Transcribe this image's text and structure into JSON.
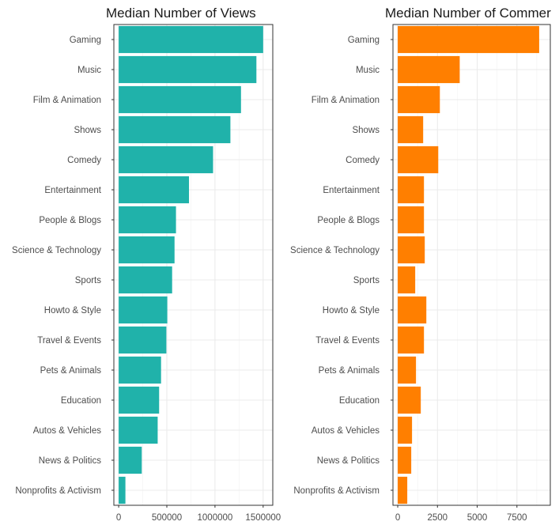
{
  "chart_data": [
    {
      "type": "bar",
      "orientation": "horizontal",
      "title": "Median Number of Views",
      "xlabel": "",
      "ylabel": "",
      "color": "#20B2AA",
      "categories": [
        "Gaming",
        "Music",
        "Film & Animation",
        "Shows",
        "Comedy",
        "Entertainment",
        "People & Blogs",
        "Science & Technology",
        "Sports",
        "Howto & Style",
        "Travel & Events",
        "Pets & Animals",
        "Education",
        "Autos & Vehicles",
        "News & Politics",
        "Nonprofits & Activism"
      ],
      "values": [
        1500000,
        1430000,
        1270000,
        1160000,
        980000,
        730000,
        595000,
        580000,
        555000,
        505000,
        495000,
        440000,
        420000,
        405000,
        240000,
        70000
      ],
      "xlim": [
        -50000,
        1600000
      ],
      "xticks": [
        0,
        500000,
        1000000,
        1500000
      ],
      "xtick_labels": [
        "0",
        "500000",
        "1000000",
        "1500000"
      ],
      "grid": true
    },
    {
      "type": "bar",
      "orientation": "horizontal",
      "title": "Median Number of Commer",
      "xlabel": "",
      "ylabel": "",
      "color": "#FF7F00",
      "categories": [
        "Gaming",
        "Music",
        "Film & Animation",
        "Shows",
        "Comedy",
        "Entertainment",
        "People & Blogs",
        "Science & Technology",
        "Sports",
        "Howto & Style",
        "Travel & Events",
        "Pets & Animals",
        "Education",
        "Autos & Vehicles",
        "News & Politics",
        "Nonprofits & Activism"
      ],
      "values": [
        8900,
        3900,
        2650,
        1600,
        2550,
        1650,
        1650,
        1700,
        1100,
        1800,
        1650,
        1150,
        1450,
        900,
        850,
        600
      ],
      "xlim": [
        -300,
        9600
      ],
      "xticks": [
        0,
        2500,
        5000,
        7500
      ],
      "xtick_labels": [
        "0",
        "2500",
        "5000",
        "7500"
      ],
      "grid": true
    }
  ]
}
